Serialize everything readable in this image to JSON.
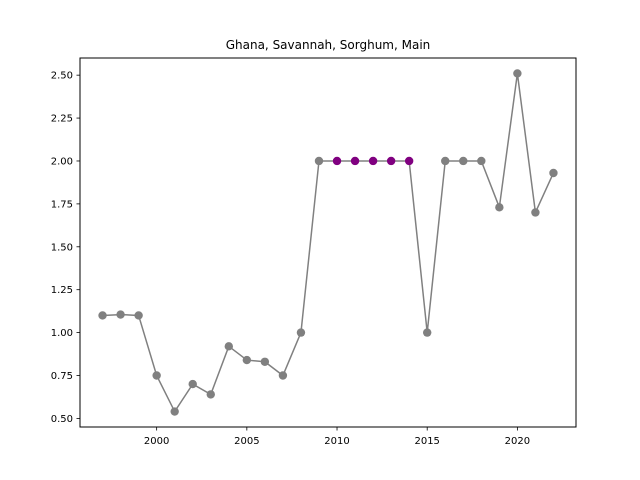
{
  "chart_data": {
    "type": "line",
    "title": "Ghana, Savannah, Sorghum, Main",
    "xlabel": "",
    "ylabel": "",
    "xlim": [
      1995.75,
      2023.25
    ],
    "ylim": [
      0.45,
      2.6
    ],
    "x_ticks": [
      2000,
      2005,
      2010,
      2015,
      2020
    ],
    "y_ticks": [
      0.5,
      0.75,
      1.0,
      1.25,
      1.5,
      1.75,
      2.0,
      2.25,
      2.5
    ],
    "x_tick_labels": [
      "2000",
      "2005",
      "2010",
      "2015",
      "2020"
    ],
    "y_tick_labels": [
      "0.50",
      "0.75",
      "1.00",
      "1.25",
      "1.50",
      "1.75",
      "2.00",
      "2.25",
      "2.50"
    ],
    "grid": false,
    "line_color": "#808080",
    "marker_color": "#808080",
    "highlight_color": "#800080",
    "x": [
      1997,
      1998,
      1999,
      2000,
      2001,
      2002,
      2003,
      2004,
      2005,
      2006,
      2007,
      2008,
      2009,
      2010,
      2011,
      2012,
      2013,
      2014,
      2015,
      2016,
      2017,
      2018,
      2019,
      2020,
      2021,
      2022
    ],
    "values": [
      1.1,
      1.105,
      1.1,
      0.75,
      0.54,
      0.7,
      0.64,
      0.92,
      0.84,
      0.83,
      0.75,
      1.0,
      2.0,
      2.0,
      2.0,
      2.0,
      2.0,
      2.0,
      1.0,
      2.0,
      2.0,
      2.0,
      1.73,
      2.51,
      1.7,
      1.93
    ],
    "highlighted_x": [
      2010,
      2011,
      2012,
      2013,
      2014
    ]
  }
}
